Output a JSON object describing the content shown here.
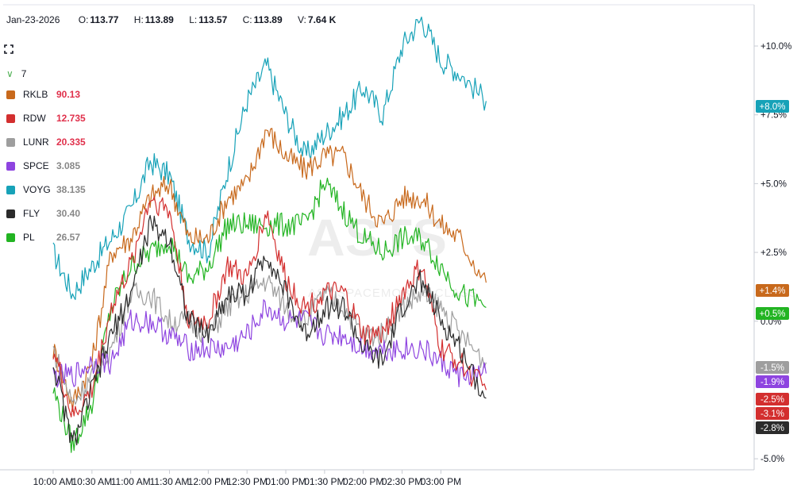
{
  "header": {
    "date": "Jan-23-2026",
    "open_label": "O:",
    "open": "113.77",
    "high_label": "H:",
    "high": "113.89",
    "low_label": "L:",
    "low": "113.57",
    "close_label": "C:",
    "close": "113.89",
    "volume_label": "V:",
    "volume": "7.64 K"
  },
  "legend": {
    "count": "7",
    "items": [
      {
        "symbol": "RKLB",
        "value": "90.13",
        "color": "#c8691c",
        "value_color": "#e0304b"
      },
      {
        "symbol": "RDW",
        "value": "12.735",
        "color": "#d32f2f",
        "value_color": "#e0304b"
      },
      {
        "symbol": "LUNR",
        "value": "20.335",
        "color": "#9e9e9e",
        "value_color": "#e0304b"
      },
      {
        "symbol": "SPCE",
        "value": "3.085",
        "color": "#8e44e0",
        "value_color": "#888888"
      },
      {
        "symbol": "VOYG",
        "value": "38.135",
        "color": "#17a2b8",
        "value_color": "#888888"
      },
      {
        "symbol": "FLY",
        "value": "30.40",
        "color": "#2b2b2b",
        "value_color": "#888888"
      },
      {
        "symbol": "PL",
        "value": "26.57",
        "color": "#22b422",
        "value_color": "#888888"
      }
    ]
  },
  "watermark": {
    "title": "ASTS",
    "subtitle": "AST SPACEMOBILE CLASS"
  },
  "chart_data": {
    "type": "line",
    "x_ticks": [
      "10:00 AM",
      "10:30 AM",
      "11:00 AM",
      "11:30 AM",
      "12:00 PM",
      "12:30 PM",
      "01:00 PM",
      "01:30 PM",
      "02:00 PM",
      "02:30 PM",
      "03:00 PM"
    ],
    "y_ticks": [
      "+10.0%",
      "+7.5%",
      "+5.0%",
      "+2.5%",
      "0.0%",
      "-5.0%"
    ],
    "y_tick_values": [
      10,
      7.5,
      5,
      2.5,
      0,
      -5
    ],
    "ylim": [
      -5,
      11.5
    ],
    "x_minutes": [
      0,
      15,
      30,
      45,
      60,
      75,
      90,
      105,
      120,
      135,
      150,
      165,
      180,
      195,
      210,
      225,
      240,
      255,
      270,
      285,
      300,
      315,
      335
    ],
    "series": [
      {
        "name": "VOYG",
        "color": "#17a2b8",
        "badge": "+8.0%",
        "last": 8.0,
        "values": [
          2.5,
          1.0,
          2.0,
          3.0,
          4.0,
          5.8,
          5.3,
          3.0,
          2.5,
          5.5,
          8.0,
          9.3,
          7.5,
          6.0,
          6.8,
          7.5,
          8.5,
          7.5,
          10.0,
          11.0,
          9.5,
          9.0,
          8.0
        ]
      },
      {
        "name": "RKLB",
        "color": "#c8691c",
        "badge": "+1.4%",
        "last": 1.4,
        "values": [
          -1.0,
          -3.0,
          -1.5,
          2.5,
          3.0,
          4.5,
          5.0,
          3.0,
          3.0,
          4.5,
          5.0,
          7.0,
          6.0,
          5.5,
          6.0,
          6.0,
          4.5,
          3.5,
          4.5,
          4.5,
          3.5,
          3.0,
          1.4
        ]
      },
      {
        "name": "PL",
        "color": "#22b422",
        "badge": "+0.5%",
        "last": 0.5,
        "values": [
          -2.5,
          -4.5,
          -3.0,
          0.5,
          2.0,
          2.5,
          3.0,
          1.5,
          2.0,
          3.5,
          3.5,
          3.5,
          3.5,
          3.5,
          5.0,
          4.0,
          3.0,
          2.5,
          3.0,
          3.0,
          2.0,
          1.0,
          0.5
        ]
      },
      {
        "name": "LUNR",
        "color": "#9e9e9e",
        "badge": "-1.5%",
        "last": -1.5,
        "values": [
          -1.0,
          -3.0,
          -2.0,
          -1.0,
          1.0,
          1.0,
          0.0,
          0.0,
          -0.5,
          0.5,
          1.0,
          1.5,
          0.5,
          0.0,
          1.0,
          0.5,
          -0.5,
          -0.5,
          0.5,
          1.0,
          0.5,
          -0.5,
          -1.5
        ]
      },
      {
        "name": "SPCE",
        "color": "#8e44e0",
        "badge": "-1.9%",
        "last": -1.9,
        "values": [
          -2.0,
          -2.0,
          -1.5,
          -1.5,
          0.0,
          0.0,
          -0.5,
          -1.0,
          -1.0,
          -1.0,
          -0.5,
          0.5,
          0.0,
          0.0,
          -0.5,
          -0.5,
          -1.0,
          -1.0,
          -1.0,
          -1.0,
          -1.5,
          -2.0,
          -1.9
        ]
      },
      {
        "name": "RDW",
        "color": "#d32f2f",
        "badge": "-2.5%",
        "last": -2.5,
        "values": [
          -1.0,
          -3.5,
          -2.5,
          0.5,
          2.0,
          4.5,
          4.0,
          0.0,
          0.0,
          2.0,
          1.5,
          4.0,
          1.5,
          0.5,
          1.0,
          1.0,
          -0.5,
          -0.5,
          1.0,
          2.0,
          -1.0,
          -1.5,
          -2.5
        ]
      },
      {
        "name": "FLY",
        "color": "#2b2b2b",
        "badge": "-2.8%",
        "last": -2.8,
        "values": [
          -1.5,
          -4.5,
          -2.5,
          -0.5,
          1.0,
          3.5,
          3.0,
          0.0,
          -0.5,
          1.0,
          1.0,
          2.5,
          1.0,
          -0.5,
          0.5,
          0.5,
          -1.0,
          -1.5,
          0.5,
          1.5,
          0.0,
          -1.0,
          -2.8
        ]
      }
    ],
    "badges_extra": [
      {
        "name": "RDW_alt",
        "badge": "-3.1%",
        "color": "#d32f2f",
        "last": -3.1
      }
    ]
  }
}
